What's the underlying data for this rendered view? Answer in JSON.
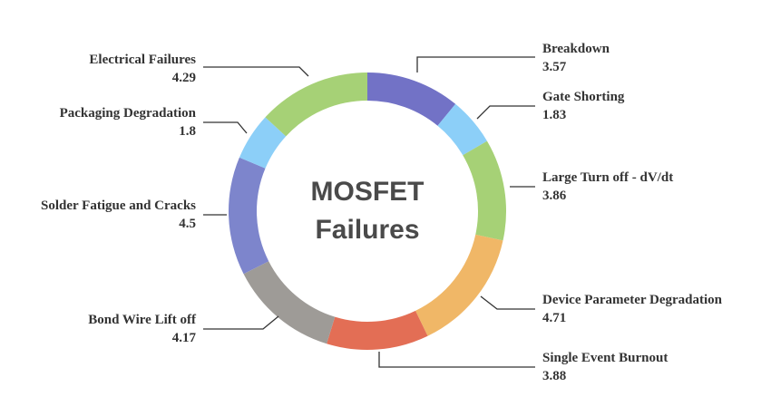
{
  "chart_data": {
    "type": "pie",
    "variant": "donut",
    "title": "MOSFET Failures",
    "title_lines": [
      "MOSFET",
      "Failures"
    ],
    "slices": [
      {
        "label": "Breakdown",
        "value": 3.57,
        "color": "#7272c6"
      },
      {
        "label": "Gate Shorting",
        "value": 1.83,
        "color": "#8ccff8"
      },
      {
        "label": "Large Turn off - dV/dt",
        "value": 3.86,
        "color": "#a6d176"
      },
      {
        "label": "Device Parameter Degradation",
        "value": 4.71,
        "color": "#f0b767"
      },
      {
        "label": "Single Event Burnout",
        "value": 3.88,
        "color": "#e36e55"
      },
      {
        "label": "Bond Wire Lift off",
        "value": 4.17,
        "color": "#9e9b97"
      },
      {
        "label": "Solder Fatigue and Cracks",
        "value": 4.5,
        "color": "#7d85cc"
      },
      {
        "label": "Packaging Degradation",
        "value": 1.8,
        "color": "#8ccff8"
      },
      {
        "label": "Electrical Failures",
        "value": 4.29,
        "color": "#a6d176"
      }
    ]
  }
}
